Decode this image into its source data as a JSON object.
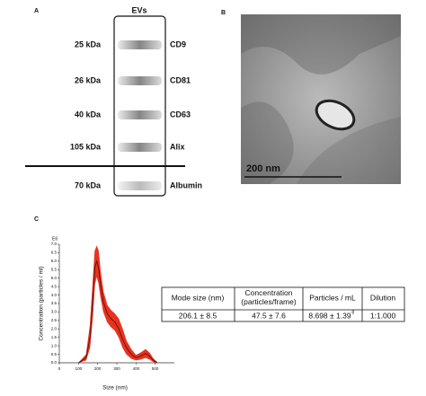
{
  "panel_a": {
    "letter": "A",
    "header": "EVs",
    "rows": [
      {
        "size": "25 kDa",
        "protein": "CD9"
      },
      {
        "size": "26 kDa",
        "protein": "CD81"
      },
      {
        "size": "40 kDa",
        "protein": "CD63"
      },
      {
        "size": "105 kDa",
        "protein": "Alix"
      },
      {
        "size": "70 kDa",
        "protein": "Albumin"
      }
    ]
  },
  "panel_b": {
    "letter": "B",
    "scale_bar": "200 nm"
  },
  "panel_c": {
    "letter": "C",
    "table": {
      "header": [
        "Mode size (nm)",
        "Concentration (particles/frame)",
        "Particles / mL",
        "Dilution"
      ],
      "row": [
        "206.1 ± 8.5",
        "47.5 ± 7.6",
        "8.698 ± 1.39",
        "1:1.000"
      ],
      "row_exponent": "8"
    }
  },
  "chart_data": {
    "type": "line",
    "x_label": "Size (nm)",
    "y_label": "Concentration (particles / ml)",
    "y_multiplier": "E6",
    "x": [
      100,
      140,
      160,
      175,
      185,
      195,
      205,
      215,
      230,
      250,
      270,
      290,
      310,
      330,
      350,
      375,
      400,
      425,
      450,
      470,
      490,
      510
    ],
    "series": [
      {
        "color": "#4a1010",
        "band_color": "#e8321e",
        "values": [
          0,
          0.3,
          1.5,
          3.8,
          5.6,
          6.0,
          5.6,
          4.6,
          3.6,
          2.9,
          2.6,
          2.4,
          2.0,
          1.4,
          0.9,
          0.5,
          0.3,
          0.4,
          0.55,
          0.4,
          0.15,
          0
        ],
        "upper": [
          0,
          0.5,
          2.2,
          4.8,
          6.6,
          6.9,
          6.6,
          5.4,
          4.2,
          3.4,
          3.1,
          2.9,
          2.6,
          2.0,
          1.3,
          0.8,
          0.45,
          0.6,
          0.8,
          0.6,
          0.25,
          0.05
        ],
        "lower": [
          0,
          0.15,
          0.9,
          2.8,
          4.6,
          5.1,
          4.7,
          3.9,
          3.0,
          2.4,
          2.1,
          1.9,
          1.5,
          0.9,
          0.5,
          0.25,
          0.15,
          0.2,
          0.3,
          0.2,
          0.05,
          0
        ]
      }
    ],
    "xlim": [
      0,
      600
    ],
    "xticks": [
      0,
      100,
      200,
      300,
      400,
      500
    ],
    "ylim": [
      0,
      7
    ],
    "yticks": [
      {
        "value": 0,
        "label": "0.0"
      },
      {
        "value": 0.5,
        "label": "0.5"
      },
      {
        "value": 1,
        "label": "1.0"
      },
      {
        "value": 1.5,
        "label": "1.5"
      },
      {
        "value": 2,
        "label": "2.0"
      },
      {
        "value": 2.5,
        "label": "2.5"
      },
      {
        "value": 3,
        "label": "3.0"
      },
      {
        "value": 3.5,
        "label": "3.5"
      },
      {
        "value": 4,
        "label": "4.0"
      },
      {
        "value": 4.5,
        "label": "4.5"
      },
      {
        "value": 5,
        "label": "5.0"
      },
      {
        "value": 5.5,
        "label": "5.5"
      },
      {
        "value": 6,
        "label": "6.0"
      },
      {
        "value": 6.5,
        "label": "6.5"
      },
      {
        "value": 7,
        "label": "7.0"
      }
    ]
  }
}
